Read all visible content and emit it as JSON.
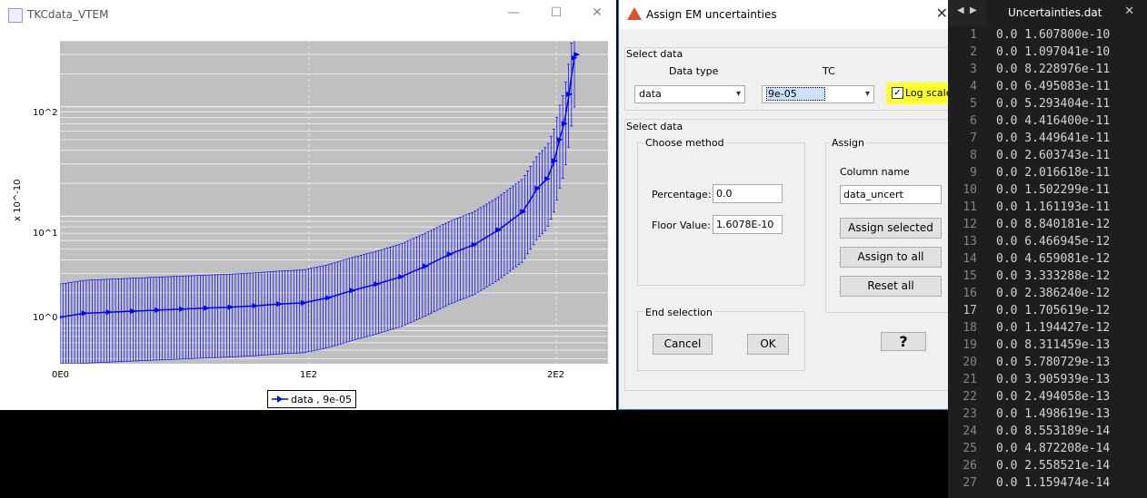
{
  "plot_window": {
    "title": "TKCdata_VTEM",
    "icon": "java-app-icon",
    "controls": [
      "minimize",
      "maximize",
      "close"
    ]
  },
  "chart_data": {
    "type": "line",
    "yscale": "log",
    "ylabel": "x 10^-10",
    "xlim": [
      0,
      225
    ],
    "ylim": [
      0.45,
      400
    ],
    "x_ticks": [
      "0E0",
      "1E2",
      "2E2"
    ],
    "y_ticks": [
      "10^0",
      "10^1",
      "10^2"
    ],
    "grid": true,
    "background": "#c0c0c0",
    "series_color": "#0000ff",
    "legend": {
      "label": "data , 9e-05",
      "placement": "bottom-center"
    },
    "series": [
      {
        "name": "data , 9e-05",
        "error_bars": "relative ±100%",
        "x": [
          0,
          10,
          20,
          30,
          40,
          50,
          60,
          70,
          80,
          90,
          100,
          110,
          120,
          130,
          140,
          150,
          160,
          170,
          180,
          190,
          196,
          200,
          203,
          205,
          207,
          209,
          211,
          212
        ],
        "y": [
          1.2,
          1.3,
          1.33,
          1.36,
          1.39,
          1.42,
          1.45,
          1.48,
          1.52,
          1.58,
          1.62,
          1.8,
          2.1,
          2.4,
          2.8,
          3.5,
          4.5,
          5.5,
          7.5,
          11,
          18,
          22,
          32,
          50,
          70,
          130,
          280,
          300
        ]
      }
    ]
  },
  "dialog": {
    "title": "Assign EM uncertainties",
    "select_data_top": {
      "heading": "Select data",
      "data_type_label": "Data type",
      "data_type_value": "data",
      "tc_label": "TC",
      "tc_value": "9e-05",
      "log_scale_label": "Log scale",
      "log_scale_checked": "✓"
    },
    "select_data_bottom": {
      "heading": "Select data",
      "choose_method": {
        "heading": "Choose method",
        "percentage_label": "Percentage:",
        "percentage_value": "0.0",
        "floor_label": "Floor Value:",
        "floor_value": "1.6078E-10"
      },
      "assign": {
        "heading": "Assign",
        "column_label": "Column name",
        "column_value": "data_uncert",
        "assign_selected": "Assign selected",
        "assign_all": "Assign to all",
        "reset_all": "Reset all",
        "help": "?"
      },
      "end_selection": {
        "heading": "End selection",
        "cancel": "Cancel",
        "ok": "OK"
      }
    }
  },
  "editor": {
    "tab_name": "Uncertainties.dat",
    "lines": [
      "0.0 1.607800e-10",
      "0.0 1.097041e-10",
      "0.0 8.228976e-11",
      "0.0 6.495083e-11",
      "0.0 5.293404e-11",
      "0.0 4.416400e-11",
      "0.0 3.449641e-11",
      "0.0 2.603743e-11",
      "0.0 2.016618e-11",
      "0.0 1.502299e-11",
      "0.0 1.161193e-11",
      "0.0 8.840181e-12",
      "0.0 6.466945e-12",
      "0.0 4.659081e-12",
      "0.0 3.333288e-12",
      "0.0 2.386240e-12",
      "0.0 1.705619e-12",
      "0.0 1.194427e-12",
      "0.0 8.311459e-13",
      "0.0 5.780729e-13",
      "0.0 3.905939e-13",
      "0.0 2.494058e-13",
      "0.0 1.498619e-13",
      "0.0 8.553189e-14",
      "0.0 4.872208e-14",
      "0.0 2.558521e-14",
      "0.0 1.159474e-14"
    ],
    "line_numbers": [
      "1",
      "2",
      "3",
      "4",
      "5",
      "6",
      "7",
      "8",
      "9",
      "10",
      "11",
      "12",
      "13",
      "14",
      "15",
      "16",
      "17",
      "18",
      "19",
      "20",
      "21",
      "22",
      "23",
      "24",
      "25",
      "26",
      "27"
    ]
  }
}
